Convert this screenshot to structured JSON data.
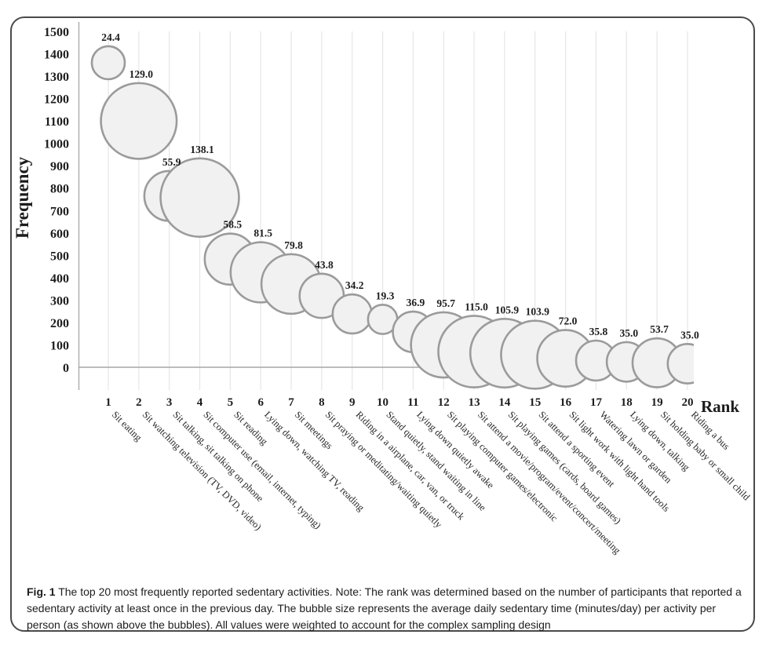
{
  "figure": {
    "caption_label": "Fig. 1",
    "caption_text": "The top 20 most frequently reported sedentary activities. Note: The rank was determined based on the number of participants that reported a sedentary activity at least once in the previous day. The bubble size represents the average daily sedentary time (minutes/day) per activity per person (as shown above the bubbles). All values were weighted to account for the complex sampling design"
  },
  "chart_data": {
    "type": "bubble",
    "title": "",
    "xlabel": "Rank",
    "ylabel": "Frequency",
    "xlim": [
      1,
      20
    ],
    "ylim": [
      0,
      1500
    ],
    "y_ticks": [
      0,
      100,
      200,
      300,
      400,
      500,
      600,
      700,
      800,
      900,
      1000,
      1100,
      1200,
      1300,
      1400,
      1500
    ],
    "x_ticks": [
      1,
      2,
      3,
      4,
      5,
      6,
      7,
      8,
      9,
      10,
      11,
      12,
      13,
      14,
      15,
      16,
      17,
      18,
      19,
      20
    ],
    "grid": "vertical-gridlines-on",
    "legend": "none",
    "bubble_size_meaning": "average daily sedentary time (minutes/day) per activity per person, value printed above each bubble",
    "bubble_fill": "#f1f1f1",
    "bubble_stroke": "#9b9b9b",
    "points": [
      {
        "rank": 1,
        "activity": "Sit eating",
        "frequency": 1360,
        "minutes_per_day": 24.4
      },
      {
        "rank": 2,
        "activity": "Sit watching television (TV, DVD, video)",
        "frequency": 1100,
        "minutes_per_day": 129.0
      },
      {
        "rank": 3,
        "activity": "Sit talking, sit talking on phone",
        "frequency": 765,
        "minutes_per_day": 55.9
      },
      {
        "rank": 4,
        "activity": "Sit computer use (email, internet, typing)",
        "frequency": 758,
        "minutes_per_day": 138.1
      },
      {
        "rank": 5,
        "activity": "Sit reading",
        "frequency": 483,
        "minutes_per_day": 58.5
      },
      {
        "rank": 6,
        "activity": "Lying down, watching TV, reading",
        "frequency": 424,
        "minutes_per_day": 81.5
      },
      {
        "rank": 7,
        "activity": "Sit meetings",
        "frequency": 372,
        "minutes_per_day": 79.8
      },
      {
        "rank": 8,
        "activity": "Sit praying or meditating/waiting quietly",
        "frequency": 319,
        "minutes_per_day": 43.8
      },
      {
        "rank": 9,
        "activity": "Riding in a airplane, car, van, or truck",
        "frequency": 238,
        "minutes_per_day": 34.2
      },
      {
        "rank": 10,
        "activity": "Stand quietly, stand waiting in line",
        "frequency": 214,
        "minutes_per_day": 19.3
      },
      {
        "rank": 11,
        "activity": "Lying down quietly awake",
        "frequency": 158,
        "minutes_per_day": 36.9
      },
      {
        "rank": 12,
        "activity": "Sit playing computer games/electronic",
        "frequency": 100,
        "minutes_per_day": 95.7
      },
      {
        "rank": 13,
        "activity": "Sit attend a movie/program/event/concert/meeting",
        "frequency": 70,
        "minutes_per_day": 115.0
      },
      {
        "rank": 14,
        "activity": "Sit playing games (cards, board games)",
        "frequency": 63,
        "minutes_per_day": 105.9
      },
      {
        "rank": 15,
        "activity": "Sit attend a sporting event",
        "frequency": 56,
        "minutes_per_day": 103.9
      },
      {
        "rank": 16,
        "activity": "Sit light work with light hand tools",
        "frequency": 40,
        "minutes_per_day": 72.0
      },
      {
        "rank": 17,
        "activity": "Watering lawn or garden",
        "frequency": 30,
        "minutes_per_day": 35.8
      },
      {
        "rank": 18,
        "activity": "Lying down, talking",
        "frequency": 24,
        "minutes_per_day": 35.0
      },
      {
        "rank": 19,
        "activity": "Sit holding baby or small child",
        "frequency": 20,
        "minutes_per_day": 53.7
      },
      {
        "rank": 20,
        "activity": "Riding a bus",
        "frequency": 16,
        "minutes_per_day": 35.0
      }
    ]
  }
}
